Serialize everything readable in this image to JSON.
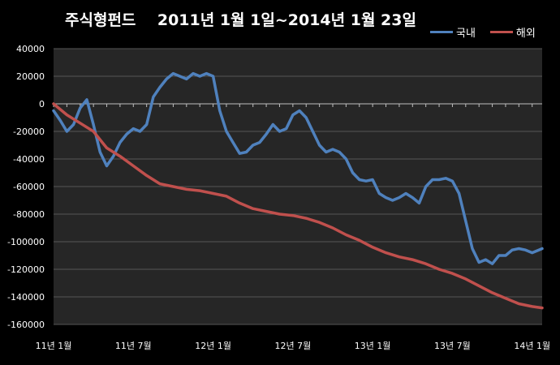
{
  "chart_data": {
    "type": "line",
    "title": "주식형펀드    2011년 1월 1일~2014년 1월 23일",
    "xlabel": "",
    "ylabel": "",
    "ylim": [
      -160000,
      40000
    ],
    "yticks": [
      40000,
      20000,
      0,
      -20000,
      -40000,
      -60000,
      -80000,
      -100000,
      -120000,
      -140000,
      -160000
    ],
    "ytick_labels": [
      "40000",
      "20000",
      "0",
      "-20000",
      "-40000",
      "-60000",
      "-80000",
      "-100000",
      "-120000",
      "-140000",
      "-160000"
    ],
    "xticks": [
      0,
      6,
      12,
      18,
      24,
      30,
      36
    ],
    "xtick_labels": [
      "11년 1월",
      "11년 7월",
      "12년 1월",
      "12년 7월",
      "13년 1월",
      "13년 7월",
      "14년 1월"
    ],
    "x_range": [
      0,
      36.75
    ],
    "grid": "horizontal",
    "legend": "top-right",
    "colors": {
      "domestic": "#4f81bd",
      "overseas": "#c0504d",
      "background": "#262626",
      "grid": "#555555"
    },
    "series": [
      {
        "name": "국내",
        "x": [
          0,
          0.5,
          1,
          1.5,
          2,
          2.5,
          3,
          3.5,
          4,
          4.5,
          5,
          5.5,
          6,
          6.5,
          7,
          7.5,
          8,
          8.5,
          9,
          9.5,
          10,
          10.5,
          11,
          11.5,
          12,
          12.5,
          13,
          13.5,
          14,
          14.5,
          15,
          15.5,
          16,
          16.5,
          17,
          17.5,
          18,
          18.5,
          19,
          19.5,
          20,
          20.5,
          21,
          21.5,
          22,
          22.5,
          23,
          23.5,
          24,
          24.5,
          25,
          25.5,
          26,
          26.5,
          27,
          27.5,
          28,
          28.5,
          29,
          29.5,
          30,
          30.5,
          31,
          31.5,
          32,
          32.5,
          33,
          33.5,
          34,
          34.5,
          35,
          35.5,
          36,
          36.5,
          36.75
        ],
        "values": [
          -5000,
          -12000,
          -20000,
          -15000,
          -3000,
          3000,
          -15000,
          -35000,
          -45000,
          -38000,
          -28000,
          -22000,
          -18000,
          -20000,
          -15000,
          5000,
          12000,
          18000,
          22000,
          20000,
          18000,
          22000,
          20000,
          22000,
          20000,
          -5000,
          -20000,
          -28000,
          -36000,
          -35000,
          -30000,
          -28000,
          -22000,
          -15000,
          -20000,
          -18000,
          -8000,
          -5000,
          -10000,
          -20000,
          -30000,
          -35000,
          -33000,
          -35000,
          -40000,
          -50000,
          -55000,
          -56000,
          -55000,
          -65000,
          -68000,
          -70000,
          -68000,
          -65000,
          -68000,
          -72000,
          -60000,
          -55000,
          -55000,
          -54000,
          -56000,
          -65000,
          -85000,
          -105000,
          -115000,
          -113000,
          -116000,
          -110000,
          -110000,
          -106000,
          -105000,
          -106000,
          -108000,
          -106000,
          -105000
        ]
      },
      {
        "name": "해외",
        "x": [
          0,
          1,
          2,
          3,
          4,
          5,
          6,
          7,
          8,
          9,
          10,
          11,
          12,
          13,
          14,
          15,
          16,
          17,
          18,
          19,
          20,
          21,
          22,
          23,
          24,
          25,
          26,
          27,
          28,
          29,
          30,
          31,
          32,
          33,
          34,
          35,
          36,
          36.75
        ],
        "values": [
          0,
          -8000,
          -14000,
          -20000,
          -32000,
          -38000,
          -45000,
          -52000,
          -58000,
          -60000,
          -62000,
          -63000,
          -65000,
          -67000,
          -72000,
          -76000,
          -78000,
          -80000,
          -81000,
          -83000,
          -86000,
          -90000,
          -95000,
          -99000,
          -104000,
          -108000,
          -111000,
          -113000,
          -116000,
          -120000,
          -123000,
          -127000,
          -132000,
          -137000,
          -141000,
          -145000,
          -147000,
          -148000
        ]
      }
    ]
  }
}
